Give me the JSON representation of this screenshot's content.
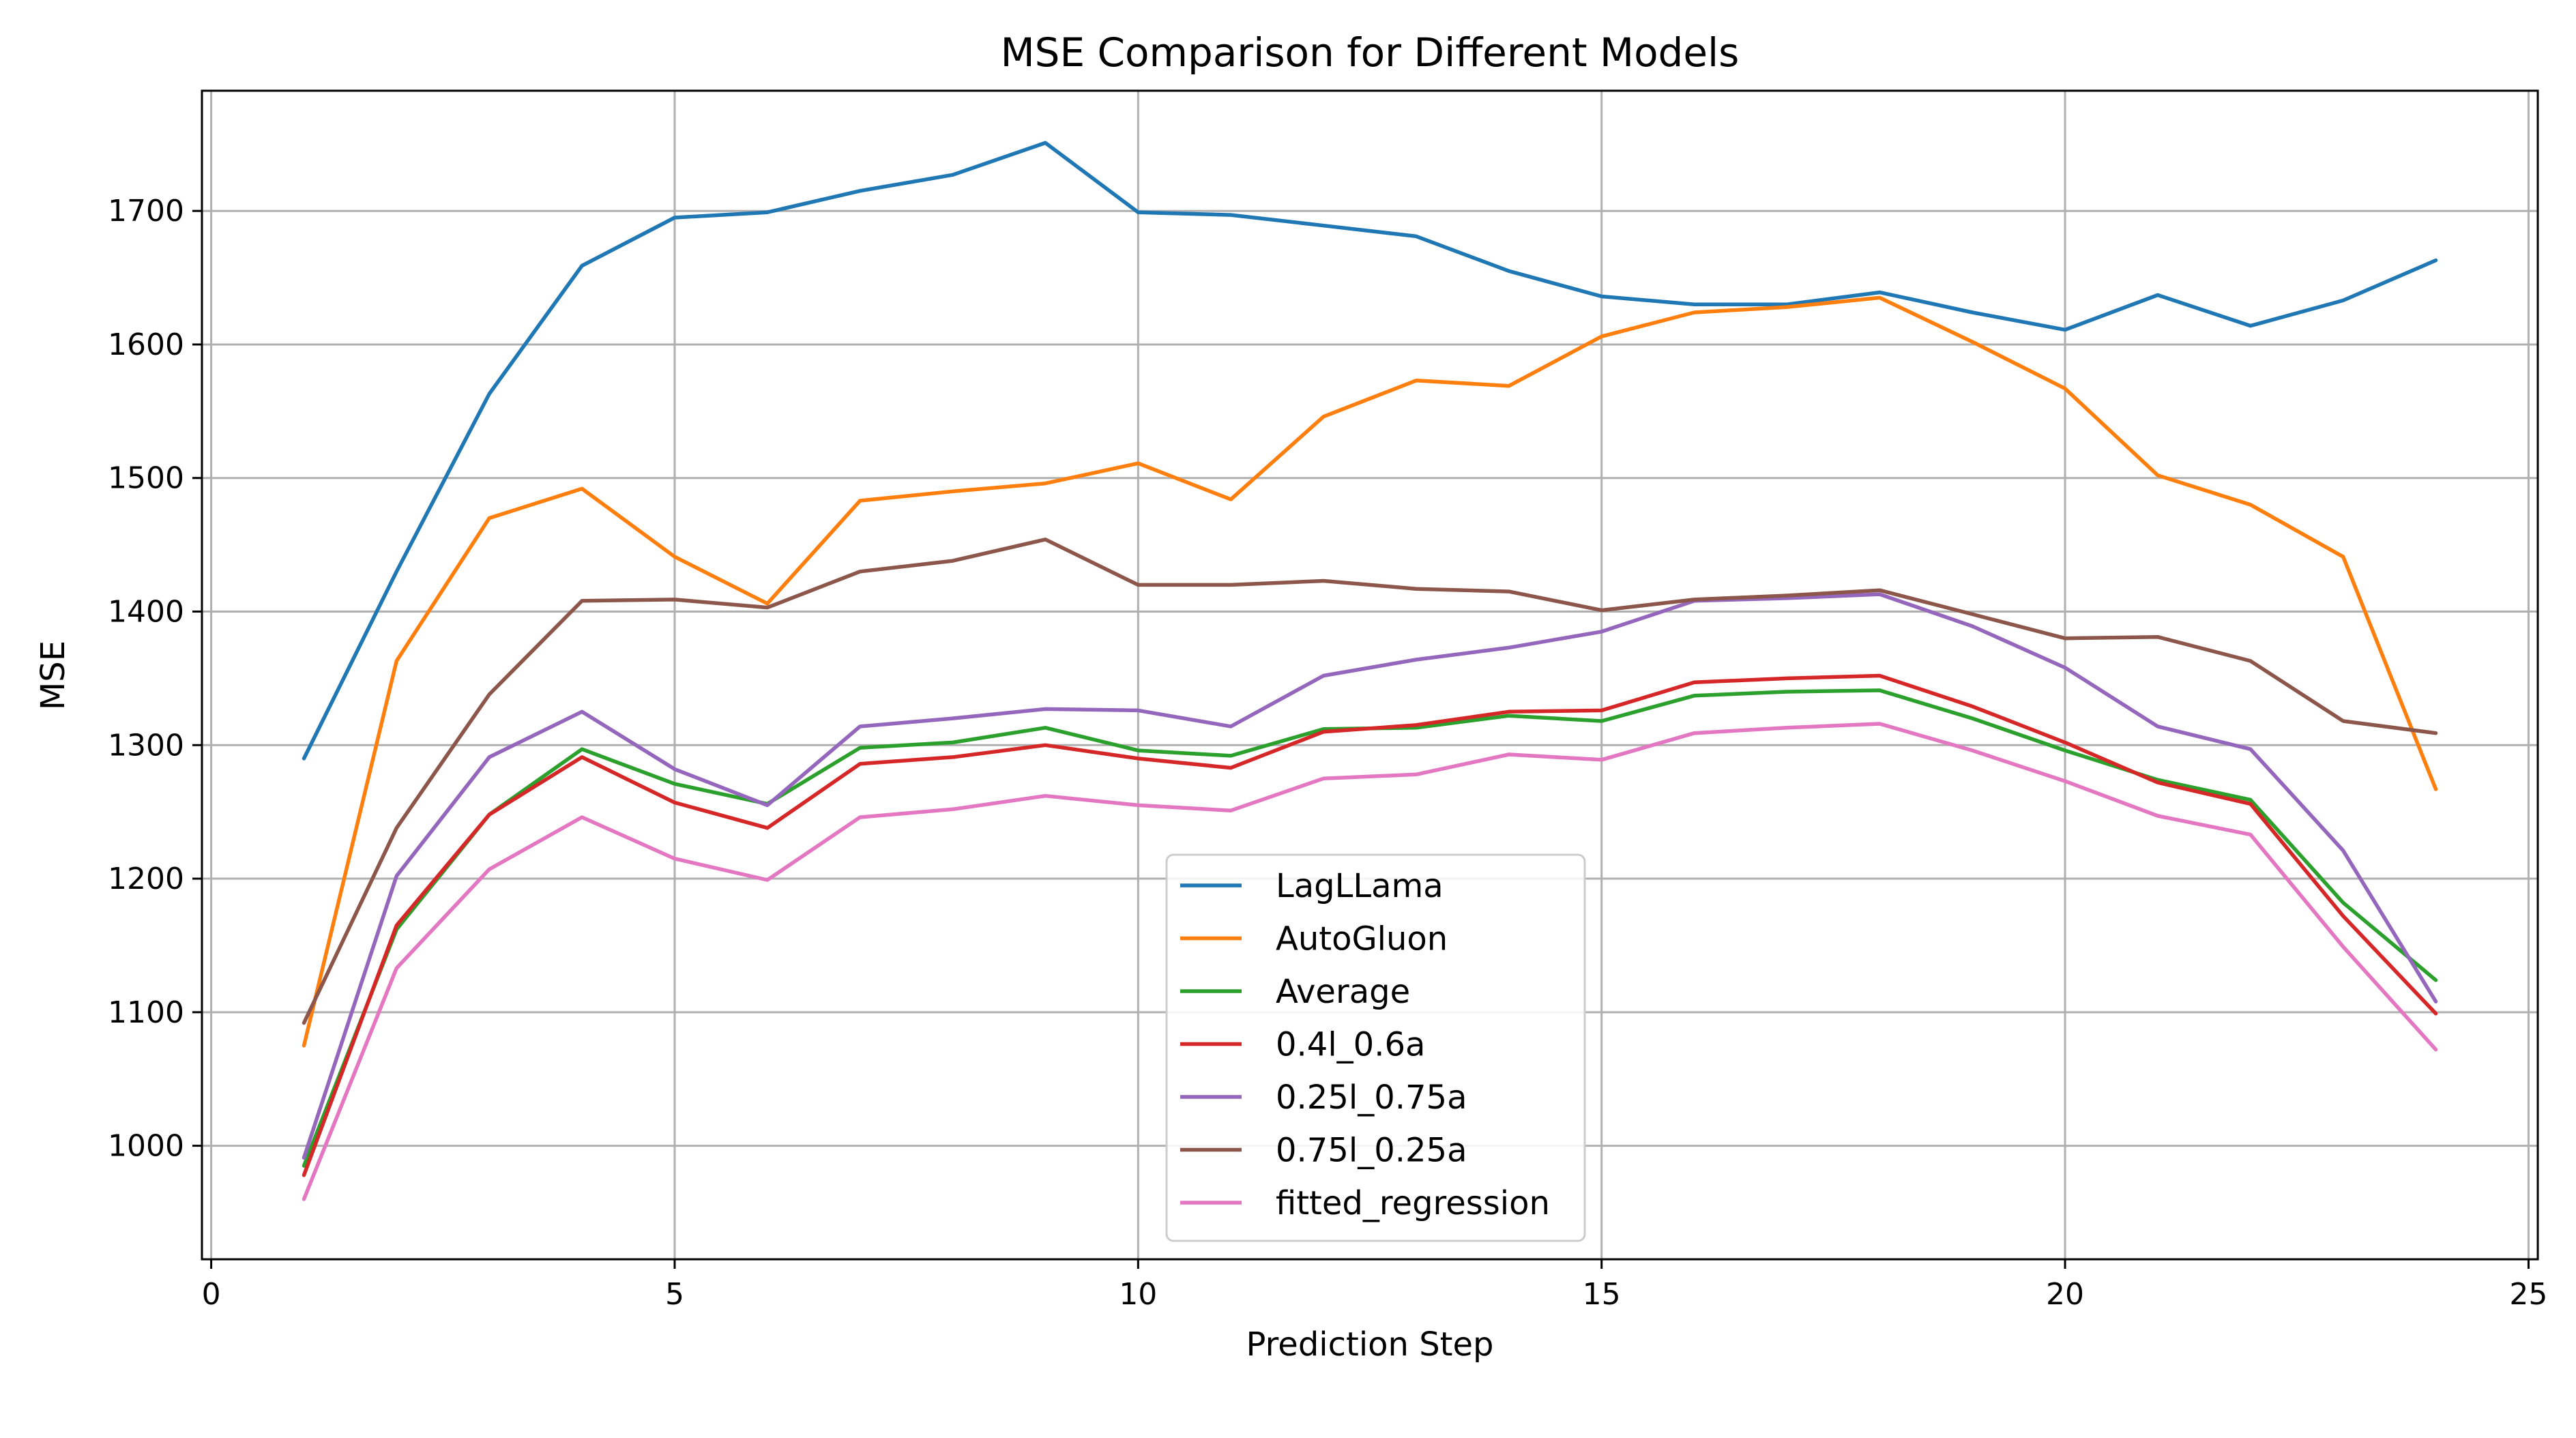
{
  "chart_data": {
    "type": "line",
    "title": "MSE Comparison for Different Models",
    "xlabel": "Prediction Step",
    "ylabel": "MSE",
    "xlim": [
      -0.1,
      25.1
    ],
    "ylim": [
      915,
      1790
    ],
    "xticks": [
      0,
      5,
      10,
      15,
      20,
      25
    ],
    "yticks": [
      1000,
      1100,
      1200,
      1300,
      1400,
      1500,
      1600,
      1700
    ],
    "grid": true,
    "legend_position": "lower-center",
    "x": [
      1,
      2,
      3,
      4,
      5,
      6,
      7,
      8,
      9,
      10,
      11,
      12,
      13,
      14,
      15,
      16,
      17,
      18,
      19,
      20,
      21,
      22,
      23,
      24
    ],
    "series": [
      {
        "name": "LagLLama",
        "color": "#1f77b4",
        "values": [
          1290,
          1430,
          1563,
          1659,
          1695,
          1699,
          1715,
          1727,
          1751,
          1699,
          1697,
          1689,
          1681,
          1655,
          1636,
          1630,
          1630,
          1639,
          1624,
          1611,
          1637,
          1614,
          1633,
          1663
        ]
      },
      {
        "name": "AutoGluon",
        "color": "#ff7f0e",
        "values": [
          1075,
          1363,
          1470,
          1492,
          1441,
          1406,
          1483,
          1490,
          1496,
          1511,
          1484,
          1546,
          1573,
          1569,
          1606,
          1624,
          1628,
          1635,
          1602,
          1567,
          1502,
          1480,
          1441,
          1267
        ]
      },
      {
        "name": "Average",
        "color": "#2ca02c",
        "values": [
          985,
          1162,
          1248,
          1297,
          1271,
          1256,
          1298,
          1302,
          1313,
          1296,
          1292,
          1312,
          1313,
          1322,
          1318,
          1337,
          1340,
          1341,
          1320,
          1296,
          1274,
          1259,
          1182,
          1124
        ]
      },
      {
        "name": "0.4l_0.6a",
        "color": "#d62728",
        "values": [
          978,
          1165,
          1248,
          1291,
          1257,
          1238,
          1286,
          1291,
          1300,
          1290,
          1283,
          1310,
          1315,
          1325,
          1326,
          1347,
          1350,
          1352,
          1329,
          1302,
          1272,
          1256,
          1172,
          1099
        ]
      },
      {
        "name": "0.25l_0.75a",
        "color": "#9467bd",
        "values": [
          991,
          1202,
          1291,
          1325,
          1282,
          1255,
          1314,
          1320,
          1327,
          1326,
          1314,
          1352,
          1364,
          1373,
          1385,
          1408,
          1410,
          1413,
          1389,
          1358,
          1314,
          1297,
          1221,
          1108
        ]
      },
      {
        "name": "0.75l_0.25a",
        "color": "#8c564b",
        "values": [
          1092,
          1238,
          1338,
          1408,
          1409,
          1403,
          1430,
          1438,
          1454,
          1420,
          1420,
          1423,
          1417,
          1415,
          1401,
          1409,
          1412,
          1416,
          1398,
          1380,
          1381,
          1363,
          1318,
          1309
        ]
      },
      {
        "name": "fitted_regression",
        "color": "#e377c2",
        "values": [
          960,
          1133,
          1207,
          1246,
          1215,
          1199,
          1246,
          1252,
          1262,
          1255,
          1251,
          1275,
          1278,
          1293,
          1289,
          1309,
          1313,
          1316,
          1296,
          1273,
          1247,
          1233,
          1149,
          1072
        ]
      }
    ]
  }
}
